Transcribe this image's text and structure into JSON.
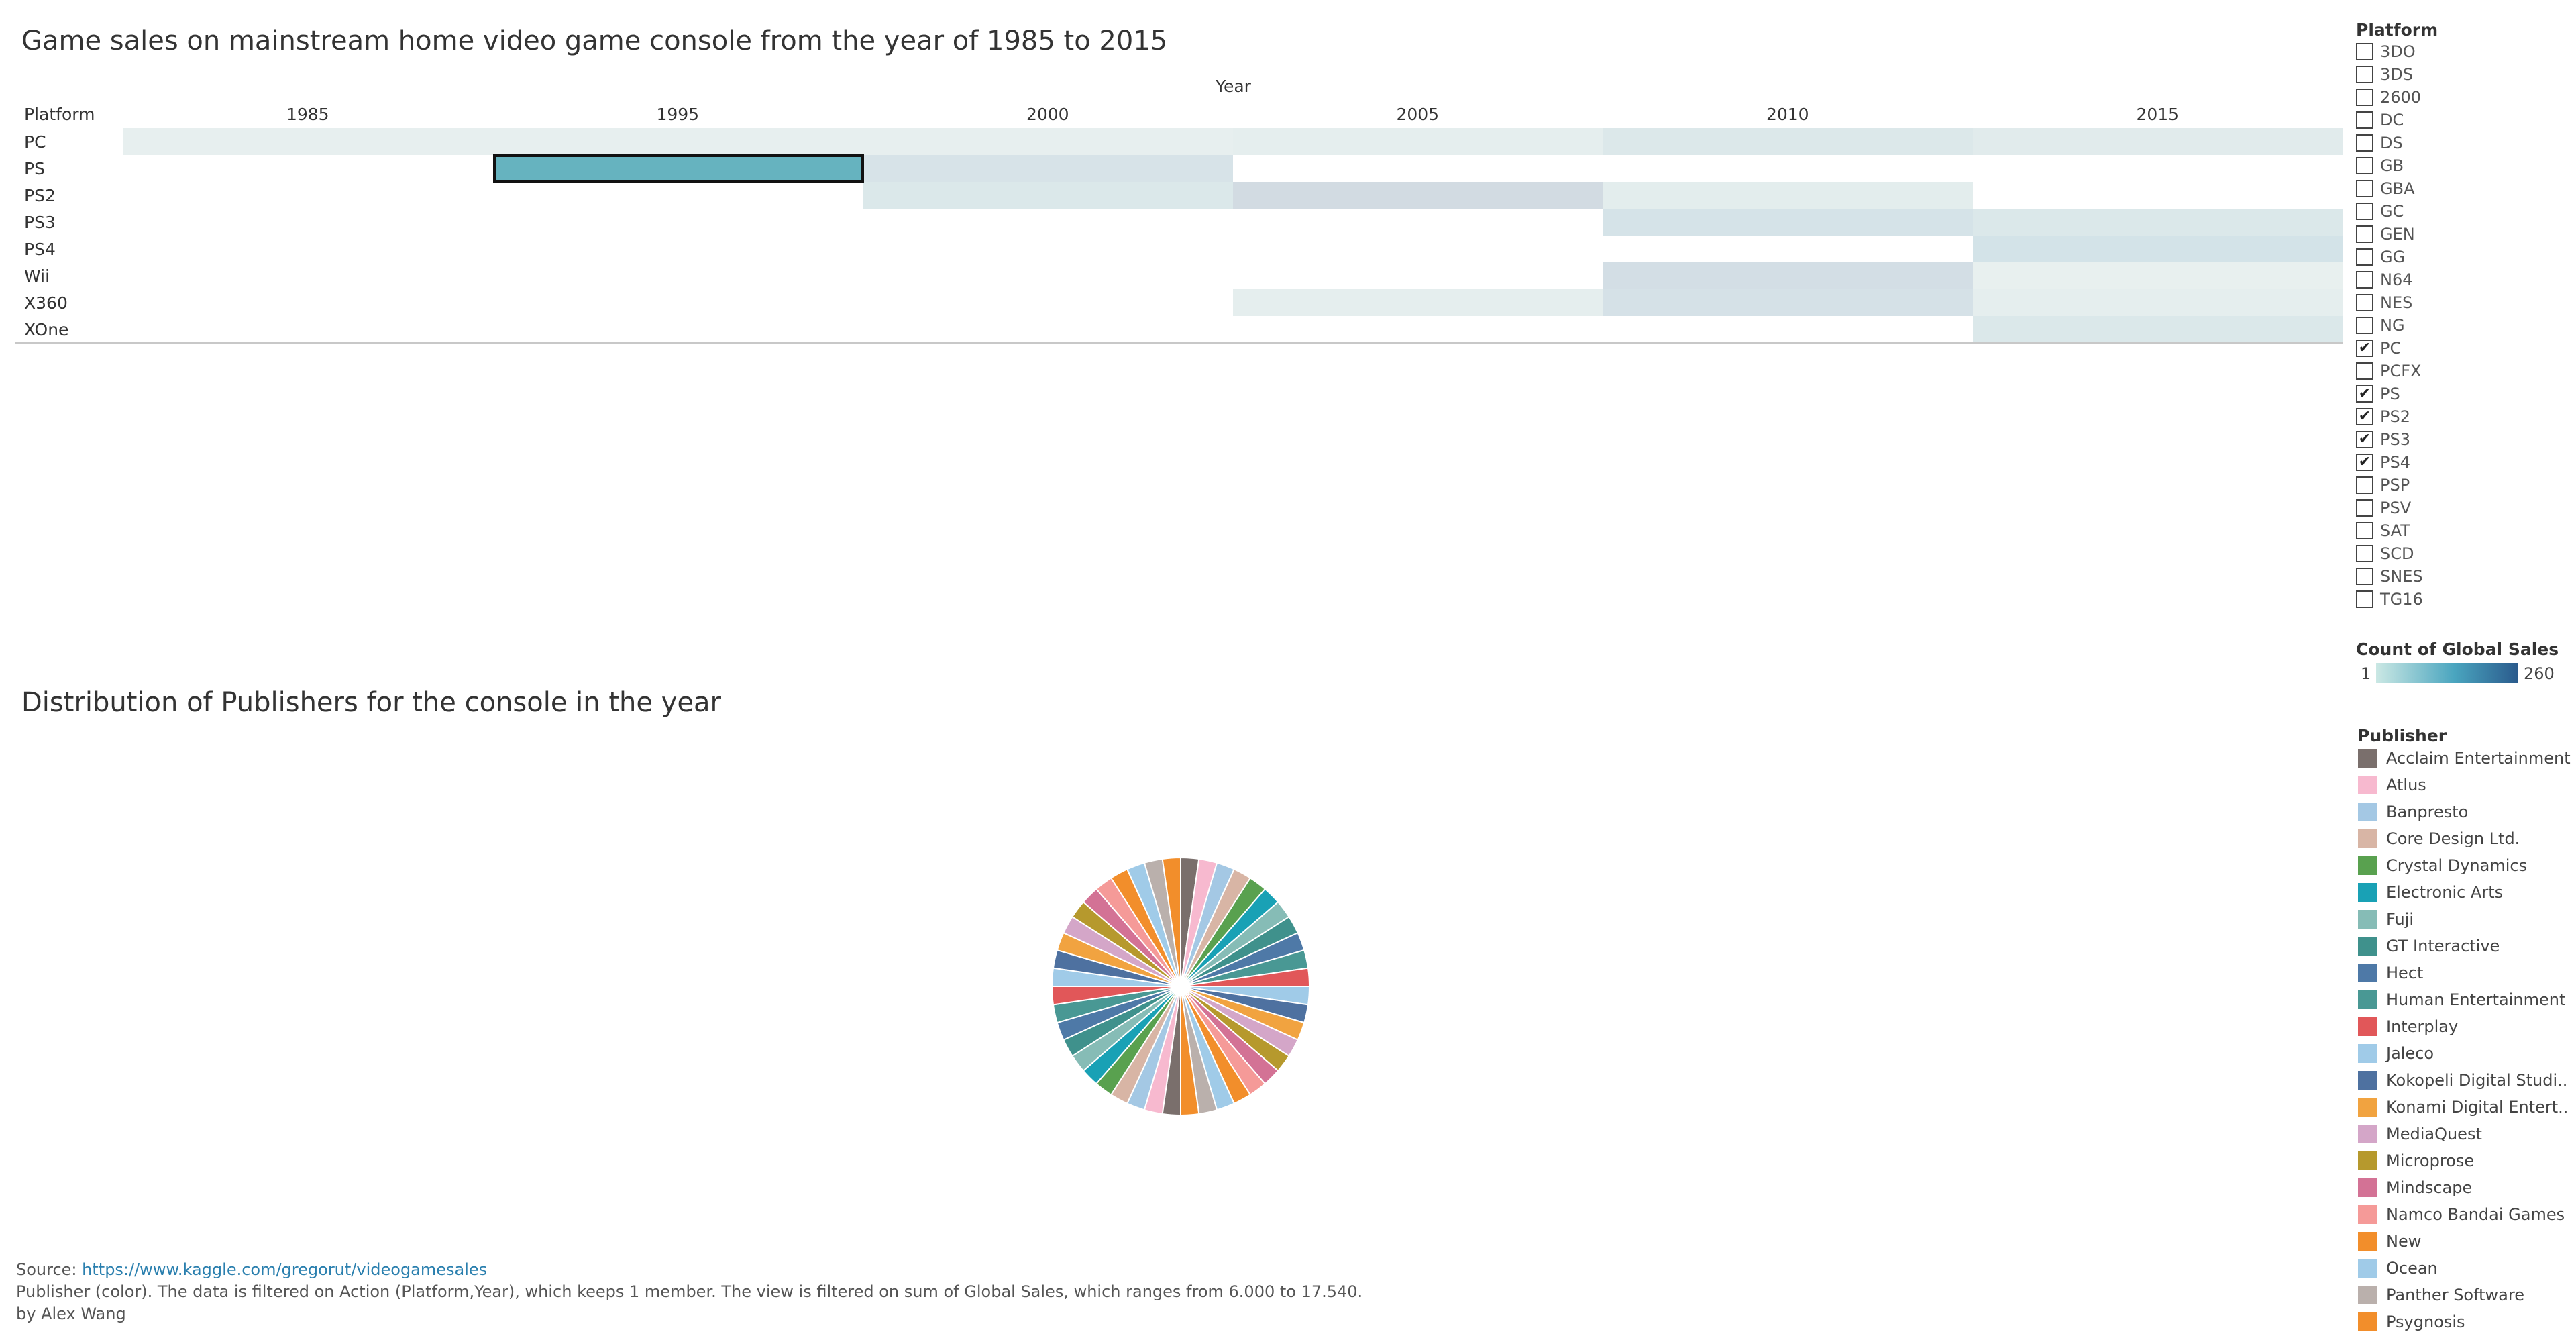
{
  "heatmap": {
    "title": "Game sales on mainstream home video game console from the year of 1985 to 2015",
    "year_axis_title": "Year",
    "platform_header": "Platform",
    "years": [
      "1985",
      "1995",
      "2000",
      "2005",
      "2010",
      "2015"
    ],
    "platforms": [
      "PC",
      "PS",
      "PS2",
      "PS3",
      "PS4",
      "Wii",
      "X360",
      "XOne"
    ],
    "selected": {
      "platform": "PS",
      "year": "1995"
    },
    "cells": [
      {
        "platform": "PC",
        "year": "1985",
        "color": "#e7efef"
      },
      {
        "platform": "PC",
        "year": "1995",
        "color": "#e7efef"
      },
      {
        "platform": "PC",
        "year": "2000",
        "color": "#e7efef"
      },
      {
        "platform": "PC",
        "year": "2005",
        "color": "#e5eeee"
      },
      {
        "platform": "PC",
        "year": "2010",
        "color": "#dce8ea"
      },
      {
        "platform": "PC",
        "year": "2015",
        "color": "#e1ebec"
      },
      {
        "platform": "PS",
        "year": "1995",
        "color": "#66b3bf"
      },
      {
        "platform": "PS",
        "year": "2000",
        "color": "#d7e3e8"
      },
      {
        "platform": "PS2",
        "year": "2000",
        "color": "#dbe8ea"
      },
      {
        "platform": "PS2",
        "year": "2005",
        "color": "#d2dbe2"
      },
      {
        "platform": "PS2",
        "year": "2010",
        "color": "#e3eded"
      },
      {
        "platform": "PS3",
        "year": "2010",
        "color": "#d5e3e8"
      },
      {
        "platform": "PS3",
        "year": "2015",
        "color": "#dbe8ea"
      },
      {
        "platform": "PS4",
        "year": "2015",
        "color": "#d3e3e8"
      },
      {
        "platform": "Wii",
        "year": "2010",
        "color": "#d3dee5"
      },
      {
        "platform": "Wii",
        "year": "2015",
        "color": "#e8f0ef"
      },
      {
        "platform": "X360",
        "year": "2005",
        "color": "#e5eeee"
      },
      {
        "platform": "X360",
        "year": "2010",
        "color": "#d5e1e7"
      },
      {
        "platform": "X360",
        "year": "2015",
        "color": "#e5eeee"
      },
      {
        "platform": "XOne",
        "year": "2015",
        "color": "#dbe8ea"
      }
    ]
  },
  "pie": {
    "title": "Distribution of Publishers for the console in the year"
  },
  "platform_filter": {
    "header": "Platform",
    "items": [
      {
        "label": "3DO",
        "checked": false
      },
      {
        "label": "3DS",
        "checked": false
      },
      {
        "label": "2600",
        "checked": false
      },
      {
        "label": "DC",
        "checked": false
      },
      {
        "label": "DS",
        "checked": false
      },
      {
        "label": "GB",
        "checked": false
      },
      {
        "label": "GBA",
        "checked": false
      },
      {
        "label": "GC",
        "checked": false
      },
      {
        "label": "GEN",
        "checked": false
      },
      {
        "label": "GG",
        "checked": false
      },
      {
        "label": "N64",
        "checked": false
      },
      {
        "label": "NES",
        "checked": false
      },
      {
        "label": "NG",
        "checked": false
      },
      {
        "label": "PC",
        "checked": true
      },
      {
        "label": "PCFX",
        "checked": false
      },
      {
        "label": "PS",
        "checked": true
      },
      {
        "label": "PS2",
        "checked": true
      },
      {
        "label": "PS3",
        "checked": true
      },
      {
        "label": "PS4",
        "checked": true
      },
      {
        "label": "PSP",
        "checked": false
      },
      {
        "label": "PSV",
        "checked": false
      },
      {
        "label": "SAT",
        "checked": false
      },
      {
        "label": "SCD",
        "checked": false
      },
      {
        "label": "SNES",
        "checked": false
      },
      {
        "label": "TG16",
        "checked": false
      }
    ],
    "check_glyph": "✔"
  },
  "color_legend": {
    "title": "Count of Global Sales",
    "min_label": "1",
    "max_label": "260",
    "gradient_start": "#cbe8e4",
    "gradient_mid": "#4aa5bf",
    "gradient_end": "#2a5a8c"
  },
  "publisher_legend": {
    "title": "Publisher",
    "items": [
      {
        "label": "Acclaim Entertainment",
        "color": "#7a6f6c"
      },
      {
        "label": "Atlus",
        "color": "#f7b9cf"
      },
      {
        "label": "Banpresto",
        "color": "#a4c8e4"
      },
      {
        "label": "Core Design Ltd.",
        "color": "#d8b5a5"
      },
      {
        "label": "Crystal Dynamics",
        "color": "#59a14f"
      },
      {
        "label": "Electronic Arts",
        "color": "#19a1b5"
      },
      {
        "label": "Fuji",
        "color": "#86bcb6"
      },
      {
        "label": "GT Interactive",
        "color": "#3f918c"
      },
      {
        "label": "Hect",
        "color": "#4e79a7"
      },
      {
        "label": "Human Entertainment",
        "color": "#499894"
      },
      {
        "label": "Interplay",
        "color": "#e15759"
      },
      {
        "label": "Jaleco",
        "color": "#a0cbe8"
      },
      {
        "label": "Kokopeli Digital Studi..",
        "color": "#4e71a0"
      },
      {
        "label": "Konami Digital Entert..",
        "color": "#f1a340"
      },
      {
        "label": "MediaQuest",
        "color": "#d4a6c8"
      },
      {
        "label": "Microprose",
        "color": "#b6992d"
      },
      {
        "label": "Mindscape",
        "color": "#d37295"
      },
      {
        "label": "Namco Bandai Games",
        "color": "#f59a98"
      },
      {
        "label": "New",
        "color": "#f28e2b"
      },
      {
        "label": "Ocean",
        "color": "#a0cbe8"
      },
      {
        "label": "Panther Software",
        "color": "#bab0ac"
      },
      {
        "label": "Psygnosis",
        "color": "#f28e2b"
      }
    ]
  },
  "footer": {
    "source_label": "Source: ",
    "source_link": "https://www.kaggle.com/gregorut/videogamesales",
    "note": "Publisher (color). The data is filtered on Action (Platform,Year), which keeps 1 member. The view is filtered on sum of Global Sales, which ranges from 6.000 to 17.540.",
    "byline": "by Alex Wang"
  }
}
